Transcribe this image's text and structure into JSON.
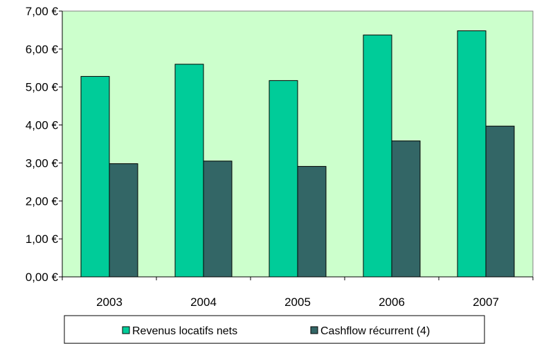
{
  "chart_data": {
    "type": "bar",
    "categories": [
      "2003",
      "2004",
      "2005",
      "2006",
      "2007"
    ],
    "series": [
      {
        "name": "Revenus locatifs nets",
        "values": [
          5.28,
          5.6,
          5.17,
          6.37,
          6.48
        ],
        "color": "#00cc99"
      },
      {
        "name": "Cashflow récurrent (4)",
        "values": [
          2.98,
          3.05,
          2.91,
          3.58,
          3.97
        ],
        "color": "#336666"
      }
    ],
    "ylim": [
      0,
      7
    ],
    "ytick_values": [
      0,
      1,
      2,
      3,
      4,
      5,
      6,
      7
    ],
    "ytick_labels": [
      "0,00 €",
      "1,00 €",
      "2,00 €",
      "3,00 €",
      "4,00 €",
      "5,00 €",
      "6,00 €",
      "7,00 €"
    ],
    "grid": false,
    "legend_position": "bottom",
    "plot_background": "#ccffcc",
    "title": "",
    "xlabel": "",
    "ylabel": ""
  }
}
